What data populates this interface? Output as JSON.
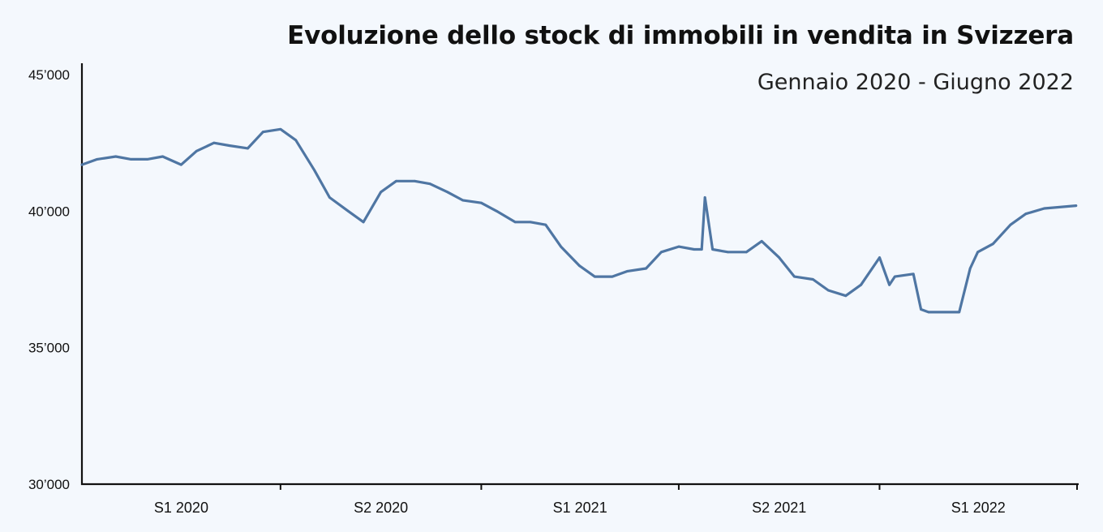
{
  "title": "Evoluzione dello stock di immobili in vendita in Svizzera",
  "subtitle": "Gennaio 2020 - Giugno 2022",
  "colors": {
    "line": "#4f76a3",
    "axis": "#111111",
    "background": "#f4f8fd"
  },
  "chart_data": {
    "type": "line",
    "title": "Evoluzione dello stock di immobili in vendita in Svizzera",
    "subtitle": "Gennaio 2020 - Giugno 2022",
    "xlabel": "",
    "ylabel": "",
    "ylim": [
      30000,
      45000
    ],
    "xlim": [
      "2020-01",
      "2022-06"
    ],
    "grid": false,
    "y_ticks": [
      {
        "value": 30000,
        "label": "30’000"
      },
      {
        "value": 35000,
        "label": "35’000"
      },
      {
        "value": 40000,
        "label": "40’000"
      },
      {
        "value": 45000,
        "label": "45’000"
      }
    ],
    "x_ticks": [
      {
        "value": "2020-01",
        "label": "S1 2020"
      },
      {
        "value": "2020-07",
        "label": "S2 2020"
      },
      {
        "value": "2021-01",
        "label": "S1 2021"
      },
      {
        "value": "2021-07",
        "label": "S2 2021"
      },
      {
        "value": "2022-01",
        "label": "S1 2022"
      }
    ],
    "series": [
      {
        "x": [
          "2020-01-01",
          "2020-01-15",
          "2020-02-01",
          "2020-02-15",
          "2020-03-01",
          "2020-03-15",
          "2020-04-01",
          "2020-04-15",
          "2020-05-01",
          "2020-05-15",
          "2020-06-01",
          "2020-06-15",
          "2020-07-01",
          "2020-07-15",
          "2020-08-01",
          "2020-08-15",
          "2020-09-01",
          "2020-09-15",
          "2020-10-01",
          "2020-10-15",
          "2020-11-01",
          "2020-11-15",
          "2020-12-01",
          "2020-12-15",
          "2021-01-01",
          "2021-01-15",
          "2021-02-01",
          "2021-02-15",
          "2021-03-01",
          "2021-03-15",
          "2021-04-01",
          "2021-04-15",
          "2021-05-01",
          "2021-05-15",
          "2021-06-01",
          "2021-06-15",
          "2021-07-01",
          "2021-07-15",
          "2021-07-22",
          "2021-07-25",
          "2021-08-01",
          "2021-08-15",
          "2021-09-01",
          "2021-09-15",
          "2021-10-01",
          "2021-10-15",
          "2021-11-01",
          "2021-11-15",
          "2021-12-01",
          "2021-12-15",
          "2022-01-01",
          "2022-01-10",
          "2022-01-15",
          "2022-02-01",
          "2022-02-08",
          "2022-02-15",
          "2022-03-01",
          "2022-03-15",
          "2022-03-25",
          "2022-04-01",
          "2022-04-15",
          "2022-05-01",
          "2022-05-15",
          "2022-06-01",
          "2022-06-30"
        ],
        "values": [
          41700,
          41900,
          42000,
          41900,
          41900,
          42000,
          41700,
          42200,
          42500,
          42400,
          42300,
          42900,
          43000,
          42600,
          41500,
          40500,
          40000,
          39600,
          40700,
          41100,
          41100,
          41000,
          40700,
          40400,
          40300,
          40000,
          39600,
          39600,
          39500,
          38700,
          38000,
          37600,
          37600,
          37800,
          37900,
          38500,
          38700,
          38600,
          38600,
          40500,
          38600,
          38500,
          38500,
          38900,
          38300,
          37600,
          37500,
          37100,
          36900,
          37300,
          38300,
          37300,
          37600,
          37700,
          36400,
          36300,
          36300,
          36300,
          37900,
          38500,
          38800,
          39500,
          39900,
          40100,
          40200
        ]
      }
    ]
  }
}
